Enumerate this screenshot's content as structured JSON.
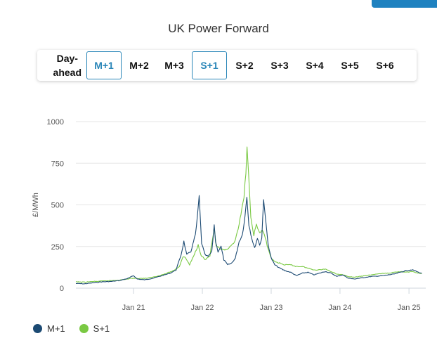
{
  "title": "UK Power Forward",
  "tabs": [
    {
      "label": "Day-\nahead",
      "active": false
    },
    {
      "label": "M+1",
      "active": true
    },
    {
      "label": "M+2",
      "active": false
    },
    {
      "label": "M+3",
      "active": false
    },
    {
      "label": "S+1",
      "active": true
    },
    {
      "label": "S+2",
      "active": false
    },
    {
      "label": "S+3",
      "active": false
    },
    {
      "label": "S+4",
      "active": false
    },
    {
      "label": "S+5",
      "active": false
    },
    {
      "label": "S+6",
      "active": false
    }
  ],
  "colors": {
    "accent": "#1f82c0",
    "m1": "#1c4a73",
    "s1": "#7ac943"
  },
  "chart_data": {
    "type": "line",
    "title": "UK Power Forward",
    "xlabel": "",
    "ylabel": "£/MWh",
    "ylim": [
      0,
      1000
    ],
    "xlim": [
      "2020-03-01",
      "2025-03-31"
    ],
    "y_ticks": [
      0,
      250,
      500,
      750,
      1000
    ],
    "x_ticks": [
      {
        "date": "2021-01-01",
        "label": "Jan 21"
      },
      {
        "date": "2022-01-01",
        "label": "Jan 22"
      },
      {
        "date": "2023-01-01",
        "label": "Jan 23"
      },
      {
        "date": "2024-01-01",
        "label": "Jan 24"
      },
      {
        "date": "2025-01-01",
        "label": "Jan 25"
      }
    ],
    "grid": "horizontal",
    "legend_position": "bottom-left",
    "series": [
      {
        "name": "M+1",
        "color": "#1c4a73",
        "points": [
          [
            "2020-03-01",
            28
          ],
          [
            "2020-04-15",
            26
          ],
          [
            "2020-06-01",
            32
          ],
          [
            "2020-07-15",
            38
          ],
          [
            "2020-09-01",
            40
          ],
          [
            "2020-10-15",
            45
          ],
          [
            "2020-12-01",
            58
          ],
          [
            "2021-01-01",
            75
          ],
          [
            "2021-01-20",
            55
          ],
          [
            "2021-03-01",
            50
          ],
          [
            "2021-04-15",
            60
          ],
          [
            "2021-06-01",
            75
          ],
          [
            "2021-07-15",
            90
          ],
          [
            "2021-08-15",
            110
          ],
          [
            "2021-09-10",
            200
          ],
          [
            "2021-09-25",
            280
          ],
          [
            "2021-10-10",
            200
          ],
          [
            "2021-11-01",
            220
          ],
          [
            "2021-11-25",
            320
          ],
          [
            "2021-12-05",
            420
          ],
          [
            "2021-12-15",
            550
          ],
          [
            "2021-12-28",
            270
          ],
          [
            "2022-01-15",
            200
          ],
          [
            "2022-02-01",
            190
          ],
          [
            "2022-02-20",
            220
          ],
          [
            "2022-03-05",
            380
          ],
          [
            "2022-03-12",
            280
          ],
          [
            "2022-03-25",
            220
          ],
          [
            "2022-04-10",
            250
          ],
          [
            "2022-04-25",
            170
          ],
          [
            "2022-05-15",
            140
          ],
          [
            "2022-06-05",
            150
          ],
          [
            "2022-06-25",
            180
          ],
          [
            "2022-07-15",
            280
          ],
          [
            "2022-08-01",
            320
          ],
          [
            "2022-08-15",
            430
          ],
          [
            "2022-08-25",
            550
          ],
          [
            "2022-09-05",
            380
          ],
          [
            "2022-09-20",
            300
          ],
          [
            "2022-10-05",
            240
          ],
          [
            "2022-10-20",
            300
          ],
          [
            "2022-11-01",
            260
          ],
          [
            "2022-11-12",
            300
          ],
          [
            "2022-11-22",
            540
          ],
          [
            "2022-12-05",
            380
          ],
          [
            "2022-12-15",
            270
          ],
          [
            "2023-01-01",
            180
          ],
          [
            "2023-01-20",
            140
          ],
          [
            "2023-02-15",
            120
          ],
          [
            "2023-03-15",
            105
          ],
          [
            "2023-04-15",
            95
          ],
          [
            "2023-05-15",
            75
          ],
          [
            "2023-06-15",
            90
          ],
          [
            "2023-07-15",
            95
          ],
          [
            "2023-08-15",
            80
          ],
          [
            "2023-09-15",
            90
          ],
          [
            "2023-10-15",
            100
          ],
          [
            "2023-11-15",
            90
          ],
          [
            "2023-12-15",
            70
          ],
          [
            "2024-01-15",
            80
          ],
          [
            "2024-02-15",
            60
          ],
          [
            "2024-03-15",
            55
          ],
          [
            "2024-04-15",
            60
          ],
          [
            "2024-05-15",
            65
          ],
          [
            "2024-06-15",
            70
          ],
          [
            "2024-07-15",
            72
          ],
          [
            "2024-08-15",
            75
          ],
          [
            "2024-09-15",
            80
          ],
          [
            "2024-10-15",
            85
          ],
          [
            "2024-11-15",
            95
          ],
          [
            "2024-12-15",
            105
          ],
          [
            "2025-01-15",
            110
          ],
          [
            "2025-02-01",
            105
          ],
          [
            "2025-02-20",
            95
          ],
          [
            "2025-03-10",
            90
          ]
        ]
      },
      {
        "name": "S+1",
        "color": "#7ac943",
        "points": [
          [
            "2020-03-01",
            38
          ],
          [
            "2020-04-15",
            36
          ],
          [
            "2020-06-01",
            40
          ],
          [
            "2020-07-15",
            42
          ],
          [
            "2020-09-01",
            45
          ],
          [
            "2020-10-15",
            48
          ],
          [
            "2020-12-01",
            55
          ],
          [
            "2021-01-01",
            60
          ],
          [
            "2021-02-01",
            58
          ],
          [
            "2021-03-15",
            60
          ],
          [
            "2021-05-01",
            70
          ],
          [
            "2021-06-15",
            85
          ],
          [
            "2021-08-01",
            105
          ],
          [
            "2021-09-01",
            130
          ],
          [
            "2021-09-20",
            190
          ],
          [
            "2021-10-05",
            180
          ],
          [
            "2021-10-25",
            140
          ],
          [
            "2021-11-15",
            190
          ],
          [
            "2021-12-10",
            260
          ],
          [
            "2021-12-25",
            200
          ],
          [
            "2022-01-15",
            170
          ],
          [
            "2022-02-10",
            195
          ],
          [
            "2022-03-05",
            360
          ],
          [
            "2022-03-15",
            250
          ],
          [
            "2022-04-01",
            240
          ],
          [
            "2022-04-20",
            230
          ],
          [
            "2022-05-10",
            230
          ],
          [
            "2022-06-01",
            250
          ],
          [
            "2022-06-20",
            275
          ],
          [
            "2022-07-10",
            360
          ],
          [
            "2022-07-25",
            440
          ],
          [
            "2022-08-10",
            550
          ],
          [
            "2022-08-20",
            700
          ],
          [
            "2022-08-26",
            850
          ],
          [
            "2022-09-03",
            680
          ],
          [
            "2022-09-15",
            420
          ],
          [
            "2022-10-01",
            320
          ],
          [
            "2022-10-15",
            380
          ],
          [
            "2022-11-01",
            330
          ],
          [
            "2022-11-15",
            350
          ],
          [
            "2022-12-01",
            300
          ],
          [
            "2022-12-15",
            240
          ],
          [
            "2023-01-01",
            180
          ],
          [
            "2023-01-20",
            160
          ],
          [
            "2023-02-15",
            150
          ],
          [
            "2023-03-15",
            140
          ],
          [
            "2023-04-15",
            140
          ],
          [
            "2023-05-15",
            130
          ],
          [
            "2023-06-15",
            130
          ],
          [
            "2023-07-15",
            120
          ],
          [
            "2023-08-15",
            110
          ],
          [
            "2023-09-15",
            110
          ],
          [
            "2023-10-15",
            115
          ],
          [
            "2023-11-15",
            100
          ],
          [
            "2023-12-15",
            85
          ],
          [
            "2024-01-15",
            80
          ],
          [
            "2024-02-15",
            70
          ],
          [
            "2024-03-15",
            65
          ],
          [
            "2024-04-15",
            70
          ],
          [
            "2024-05-15",
            75
          ],
          [
            "2024-06-15",
            80
          ],
          [
            "2024-07-15",
            85
          ],
          [
            "2024-08-15",
            88
          ],
          [
            "2024-09-15",
            90
          ],
          [
            "2024-10-15",
            95
          ],
          [
            "2024-11-15",
            100
          ],
          [
            "2024-12-15",
            95
          ],
          [
            "2025-01-15",
            100
          ],
          [
            "2025-02-01",
            95
          ],
          [
            "2025-02-20",
            90
          ],
          [
            "2025-03-10",
            88
          ]
        ]
      }
    ]
  }
}
